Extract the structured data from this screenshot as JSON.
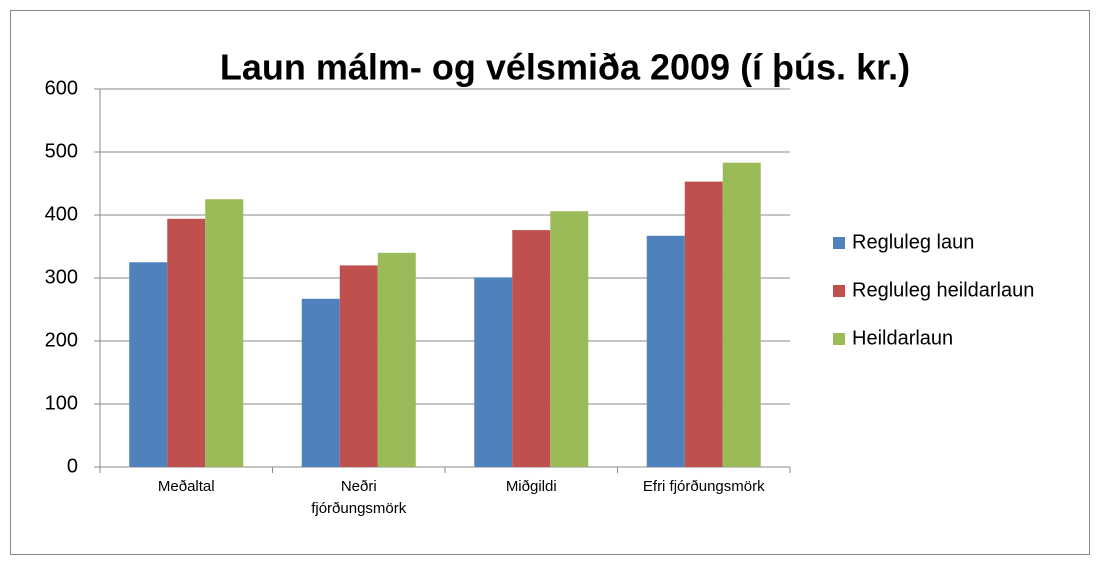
{
  "chart_data": {
    "type": "bar",
    "title": "Laun málm- og vélsmiða 2009 (í þús. kr.)",
    "categories": [
      "Meðaltal",
      "Neðri fjórðungsmörk",
      "Miðgildi",
      "Efri fjórðungsmörk"
    ],
    "series": [
      {
        "name": "Regluleg laun",
        "color": "#4f81bd",
        "values": [
          325,
          267,
          301,
          367
        ]
      },
      {
        "name": "Regluleg heildarlaun",
        "color": "#c0504d",
        "values": [
          394,
          320,
          376,
          453
        ]
      },
      {
        "name": "Heildarlaun",
        "color": "#9bbb59",
        "values": [
          425,
          340,
          406,
          483
        ]
      }
    ],
    "ylim": [
      0,
      600
    ],
    "yticks": [
      0,
      100,
      200,
      300,
      400,
      500,
      600
    ],
    "grid": true,
    "legend": "right"
  }
}
